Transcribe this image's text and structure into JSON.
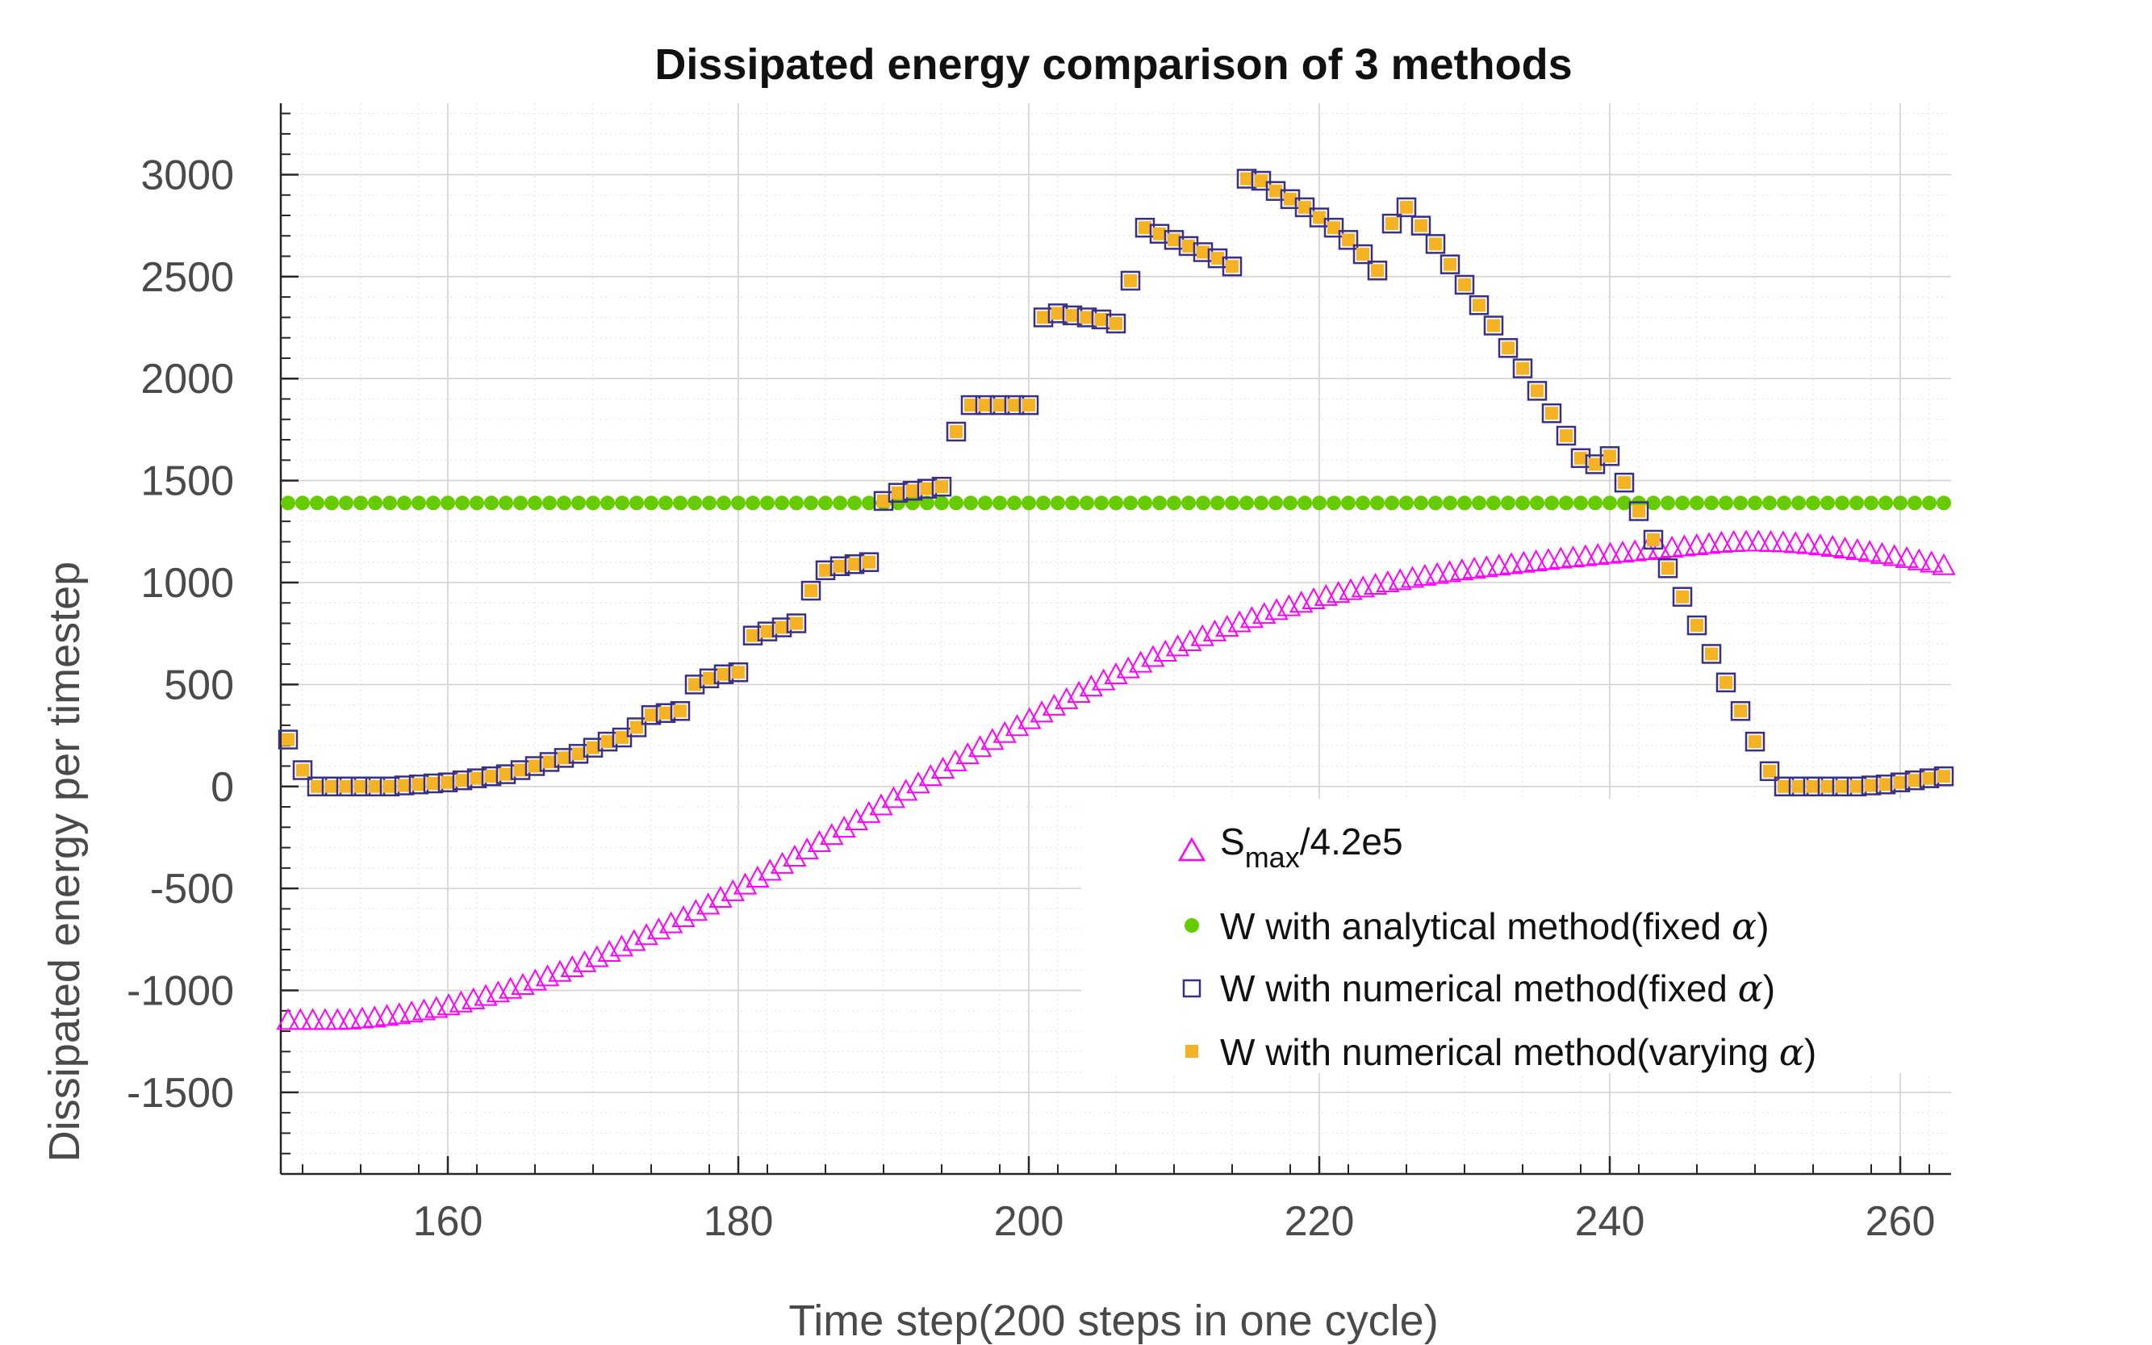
{
  "chart_data": {
    "type": "scatter",
    "title": "Dissipated energy comparison of 3 methods",
    "xlabel": "Time step(200 steps in one cycle)",
    "ylabel": "Dissipated energy per timestep",
    "xlim": [
      148.5,
      263.5
    ],
    "ylim": [
      -1900,
      3350
    ],
    "xticks": [
      160,
      180,
      200,
      220,
      240,
      260
    ],
    "yticks": [
      -1500,
      -1000,
      -500,
      0,
      500,
      1000,
      1500,
      2000,
      2500,
      3000
    ],
    "grid": "major-and-minor",
    "legend_position": "lower-right",
    "colors": {
      "smax": "#ff00ff",
      "analytical": "#66cc00",
      "numerical_fixed_edge": "#3b2f85",
      "numerical_varying": "#f5b324"
    },
    "series": [
      {
        "name": "Smax/4.2e5",
        "marker": "triangle",
        "x_start": 149,
        "x_end": 263,
        "values": [
          -1150,
          -1150,
          -1150,
          -1150,
          -1150,
          -1148,
          -1143,
          -1138,
          -1130,
          -1122,
          -1113,
          -1103,
          -1091,
          -1078,
          -1064,
          -1049,
          -1032,
          -1015,
          -997,
          -978,
          -957,
          -936,
          -914,
          -891,
          -867,
          -842,
          -816,
          -790,
          -763,
          -734,
          -706,
          -676,
          -646,
          -615,
          -584,
          -551,
          -519,
          -486,
          -452,
          -418,
          -384,
          -349,
          -314,
          -278,
          -243,
          -207,
          -171,
          -135,
          -98,
          -62,
          -26,
          10,
          46,
          82,
          118,
          153,
          188,
          223,
          257,
          291,
          325,
          358,
          391,
          423,
          454,
          485,
          515,
          545,
          574,
          602,
          630,
          656,
          682,
          707,
          732,
          755,
          778,
          800,
          821,
          841,
          860,
          879,
          896,
          913,
          929,
          944,
          958,
          971,
          984,
          996,
          1007,
          1018,
          1028,
          1037,
          1046,
          1055,
          1063,
          1070,
          1078,
          1085,
          1092,
          1099,
          1106,
          1112,
          1118,
          1124,
          1130,
          1136,
          1142,
          1148,
          1154,
          1160,
          1166,
          1172,
          1178,
          1184,
          1190,
          1194,
          1196,
          1196,
          1194,
          1192,
          1188,
          1183,
          1177,
          1170,
          1162,
          1154,
          1145,
          1135,
          1125,
          1115,
          1104,
          1093,
          1080
        ]
      },
      {
        "name": "W with analytical method(fixed α)",
        "marker": "circle",
        "x_start": 149,
        "x_end": 263,
        "constant": 1390
      },
      {
        "name": "W with numerical method(fixed α)",
        "marker": "square-open",
        "x_start": 149,
        "values": [
          230,
          80,
          0,
          0,
          0,
          0,
          0,
          0,
          5,
          10,
          15,
          20,
          30,
          40,
          50,
          60,
          80,
          100,
          120,
          140,
          160,
          190,
          220,
          240,
          290,
          350,
          360,
          370,
          500,
          530,
          550,
          560,
          740,
          760,
          780,
          800,
          960,
          1060,
          1080,
          1090,
          1100,
          1400,
          1440,
          1450,
          1460,
          1470,
          1740,
          1870,
          1870,
          1870,
          1870,
          1870,
          2300,
          2320,
          2310,
          2300,
          2290,
          2270,
          2480,
          2740,
          2710,
          2680,
          2650,
          2620,
          2590,
          2550,
          2980,
          2970,
          2920,
          2880,
          2840,
          2790,
          2740,
          2680,
          2610,
          2530,
          2760,
          2840,
          2750,
          2660,
          2560,
          2460,
          2360,
          2260,
          2150,
          2050,
          1940,
          1830,
          1720,
          1610,
          1580,
          1620,
          1490,
          1350,
          1210,
          1070,
          930,
          790,
          650,
          510,
          370,
          220,
          75,
          0,
          0,
          0,
          0,
          0,
          0,
          5,
          10,
          20,
          30,
          40,
          50
        ]
      },
      {
        "name": "W with numerical method(varying α)",
        "marker": "square-filled",
        "x_start": 149,
        "same_as": "W with numerical method(fixed α)"
      }
    ],
    "legend": {
      "smax_base": "S",
      "smax_sub": "max",
      "smax_rest": "/4.2e5",
      "analytical_prefix": "W with analytical method(fixed ",
      "numerical_fixed_prefix": "W with numerical method(fixed ",
      "numerical_varying_prefix": "W with numerical method(varying ",
      "alpha_symbol": "α",
      "close_paren": ")"
    }
  }
}
